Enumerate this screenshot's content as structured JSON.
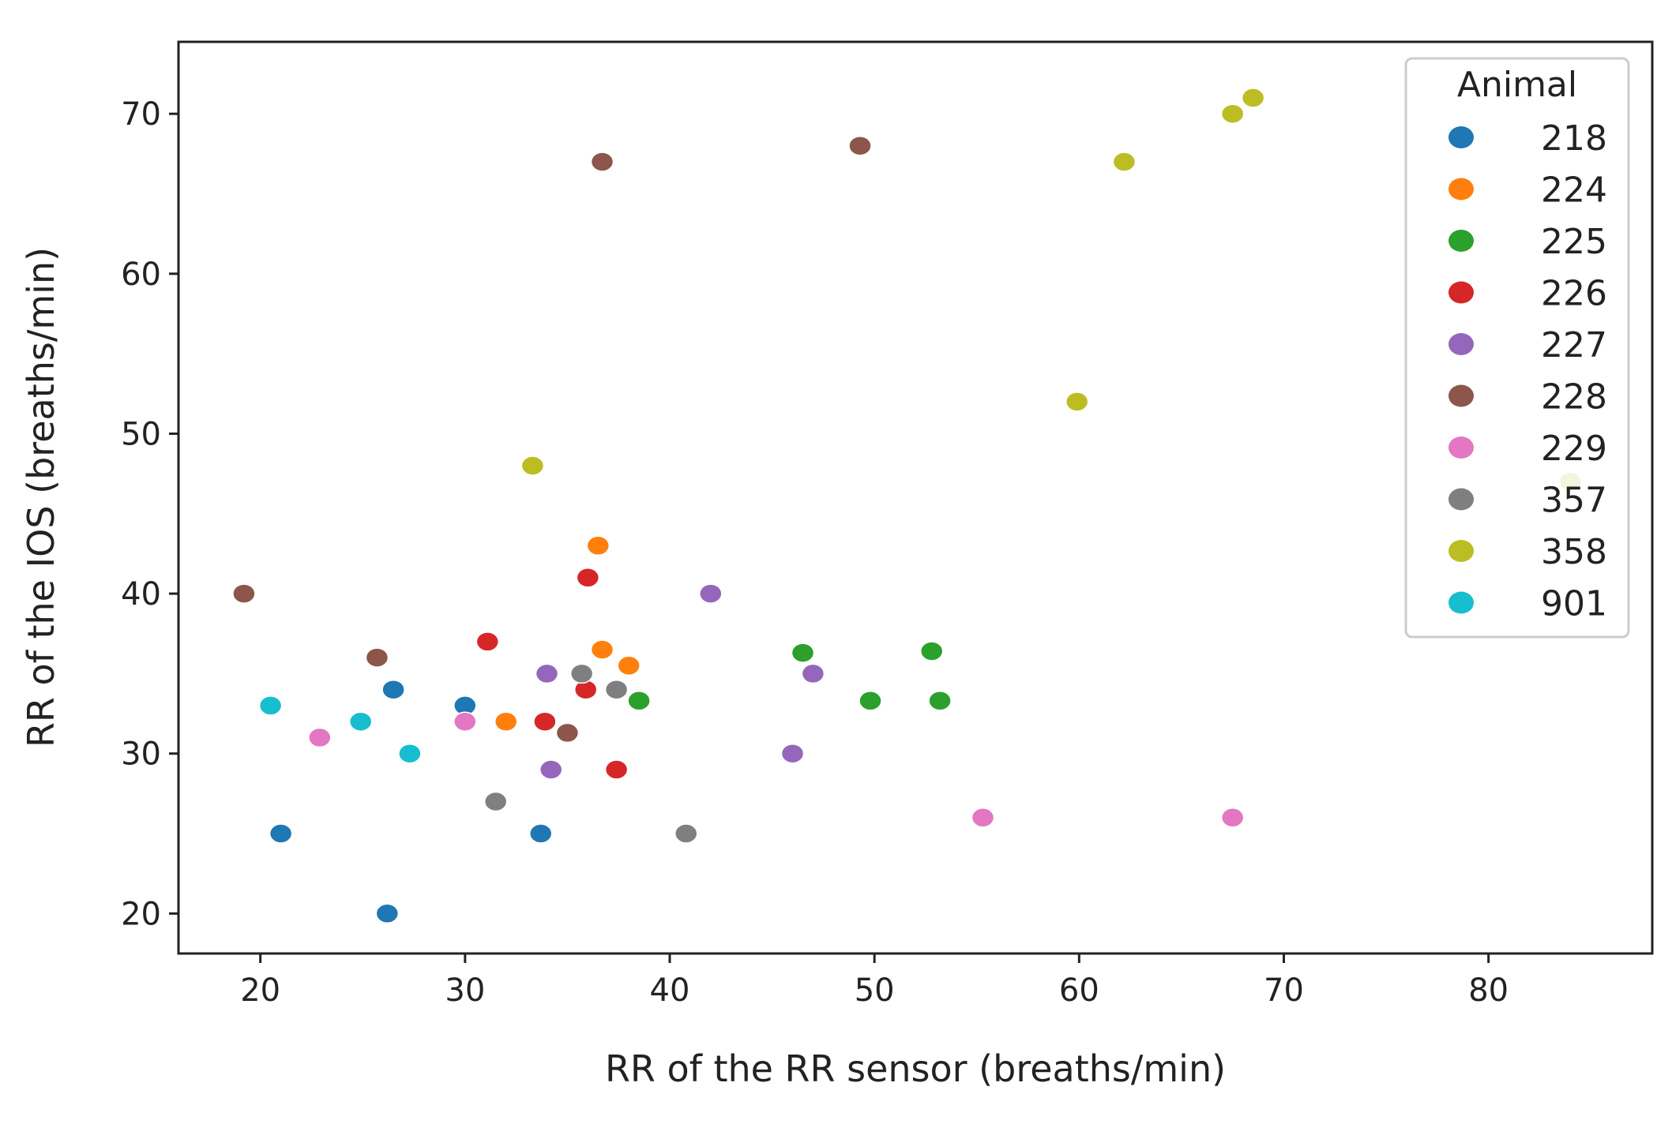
{
  "chart_data": {
    "type": "scatter",
    "title": "",
    "xlabel": "RR of the RR sensor (breaths/min)",
    "ylabel": "RR of the IOS (breaths/min)",
    "xlim": [
      16,
      88
    ],
    "ylim": [
      17.5,
      74.5
    ],
    "xticks": [
      20,
      30,
      40,
      50,
      60,
      70,
      80
    ],
    "yticks": [
      20,
      30,
      40,
      50,
      60,
      70
    ],
    "grid": false,
    "legend": {
      "title": "Animal",
      "placement": "top-right"
    },
    "series": [
      {
        "name": "218",
        "color": "#1f77b4",
        "points": [
          [
            21,
            25
          ],
          [
            26.5,
            34
          ],
          [
            30,
            33
          ],
          [
            33.7,
            25
          ],
          [
            26.2,
            20
          ]
        ]
      },
      {
        "name": "224",
        "color": "#ff7f0e",
        "points": [
          [
            32,
            32
          ],
          [
            36.5,
            43
          ],
          [
            36.7,
            36.5
          ],
          [
            38,
            35.5
          ]
        ]
      },
      {
        "name": "225",
        "color": "#2ca02c",
        "points": [
          [
            38.5,
            33.3
          ],
          [
            46.5,
            36.3
          ],
          [
            49.8,
            33.3
          ],
          [
            52.8,
            36.4
          ],
          [
            53.2,
            33.3
          ]
        ]
      },
      {
        "name": "226",
        "color": "#d62728",
        "points": [
          [
            31.1,
            37
          ],
          [
            33.9,
            32
          ],
          [
            35.9,
            34
          ],
          [
            36,
            41
          ],
          [
            37.4,
            29
          ]
        ]
      },
      {
        "name": "227",
        "color": "#9467bd",
        "points": [
          [
            34,
            35
          ],
          [
            34.2,
            29
          ],
          [
            42,
            40
          ],
          [
            46,
            30
          ],
          [
            47,
            35
          ]
        ]
      },
      {
        "name": "228",
        "color": "#8c564b",
        "points": [
          [
            19.2,
            40
          ],
          [
            25.7,
            36
          ],
          [
            35,
            31.3
          ],
          [
            36.7,
            67
          ],
          [
            49.3,
            68
          ]
        ]
      },
      {
        "name": "229",
        "color": "#e377c2",
        "points": [
          [
            22.9,
            31
          ],
          [
            30,
            32
          ],
          [
            55.3,
            26
          ],
          [
            67.5,
            26
          ]
        ]
      },
      {
        "name": "357",
        "color": "#7f7f7f",
        "points": [
          [
            31.5,
            27
          ],
          [
            35.7,
            35
          ],
          [
            37.4,
            34
          ],
          [
            40.8,
            25
          ]
        ]
      },
      {
        "name": "358",
        "color": "#bcbd22",
        "points": [
          [
            33.3,
            48
          ],
          [
            59.9,
            52
          ],
          [
            62.2,
            67
          ],
          [
            67.5,
            70
          ],
          [
            68.5,
            71
          ],
          [
            84,
            47
          ]
        ]
      },
      {
        "name": "901",
        "color": "#17becf",
        "points": [
          [
            20.5,
            33
          ],
          [
            24.9,
            32
          ],
          [
            27.3,
            30
          ]
        ]
      }
    ]
  }
}
